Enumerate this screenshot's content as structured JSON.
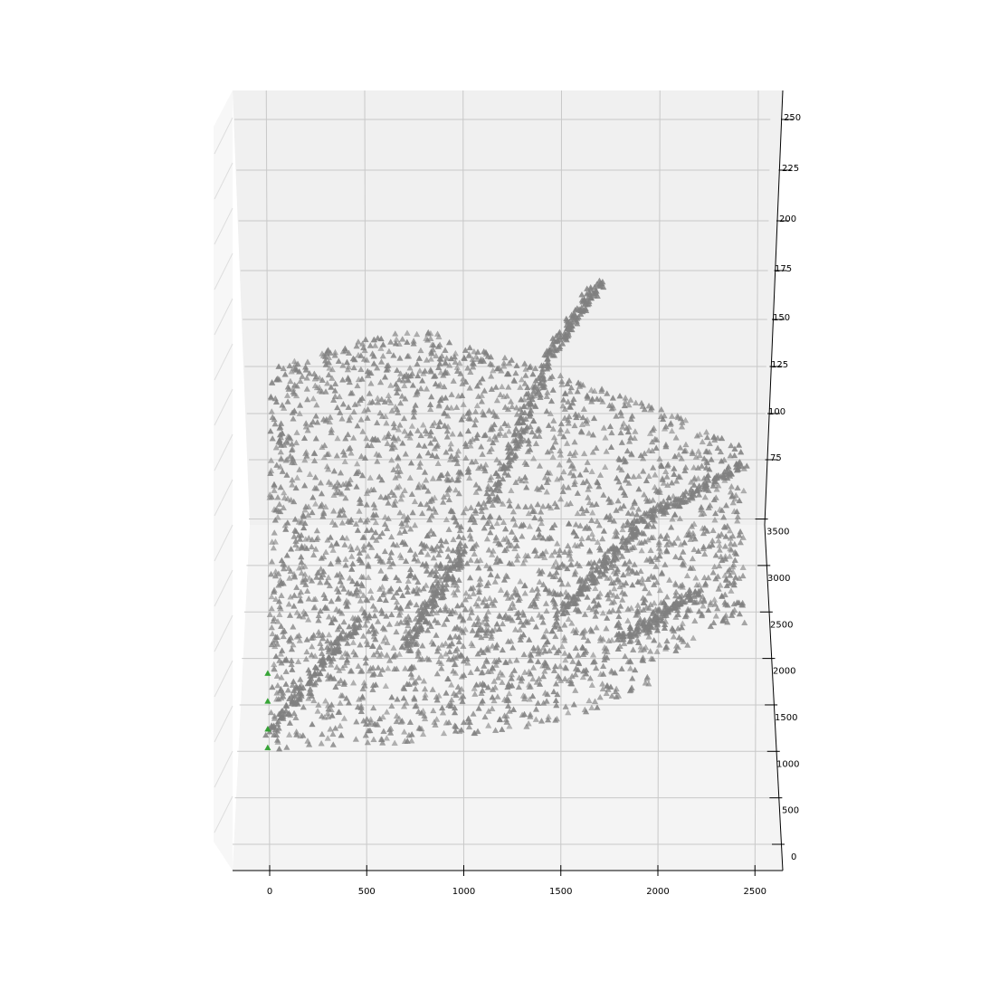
{
  "chart_data": {
    "type": "scatter",
    "projection": "3d",
    "title": "",
    "xlabel": "",
    "ylabel": "",
    "zlabel": "",
    "x_ticks": [
      "0",
      "500",
      "1000",
      "1500",
      "2000",
      "2500"
    ],
    "y_ticks": [
      "0",
      "500",
      "1000",
      "1500",
      "2000",
      "2500",
      "3000",
      "3500"
    ],
    "z_ticks": [
      "75",
      "100",
      "125",
      "150",
      "175",
      "200",
      "225",
      "250"
    ],
    "xlim": [
      -190,
      2640
    ],
    "ylim": [
      -120,
      3800
    ],
    "zlim": [
      60,
      260
    ],
    "grid": true,
    "marker": "triangle",
    "series": [
      {
        "color": "#808080",
        "point_count_approx": 4500,
        "x_range": [
          0,
          2450
        ],
        "y_range": [
          1000,
          3750
        ],
        "z_range": [
          60,
          205
        ],
        "features": [
          {
            "from": [
              1150,
              3000,
              95
            ],
            "to": [
              1450,
              3500,
              150
            ]
          },
          {
            "from": [
              1450,
              3500,
              150
            ],
            "to": [
              1700,
              3750,
              175
            ]
          },
          {
            "from": [
              1500,
              2000,
              85
            ],
            "to": [
              1900,
              2400,
              110
            ]
          },
          {
            "from": [
              0,
              1000,
              70
            ],
            "to": [
              450,
              1800,
              90
            ]
          },
          {
            "from": [
              1850,
              2200,
              120
            ],
            "to": [
              2450,
              2600,
              135
            ]
          },
          {
            "from": [
              1800,
              1500,
              95
            ],
            "to": [
              2200,
              1700,
              110
            ]
          },
          {
            "from": [
              700,
              1700,
              80
            ],
            "to": [
              1000,
              2500,
              95
            ]
          }
        ]
      },
      {
        "color": "#2ca02c",
        "points": [
          {
            "x": -10,
            "y": 1800,
            "z": 62
          },
          {
            "x": -10,
            "y": 1500,
            "z": 62
          },
          {
            "x": -10,
            "y": 1200,
            "z": 62
          },
          {
            "x": -10,
            "y": 1000,
            "z": 62
          }
        ]
      }
    ]
  }
}
